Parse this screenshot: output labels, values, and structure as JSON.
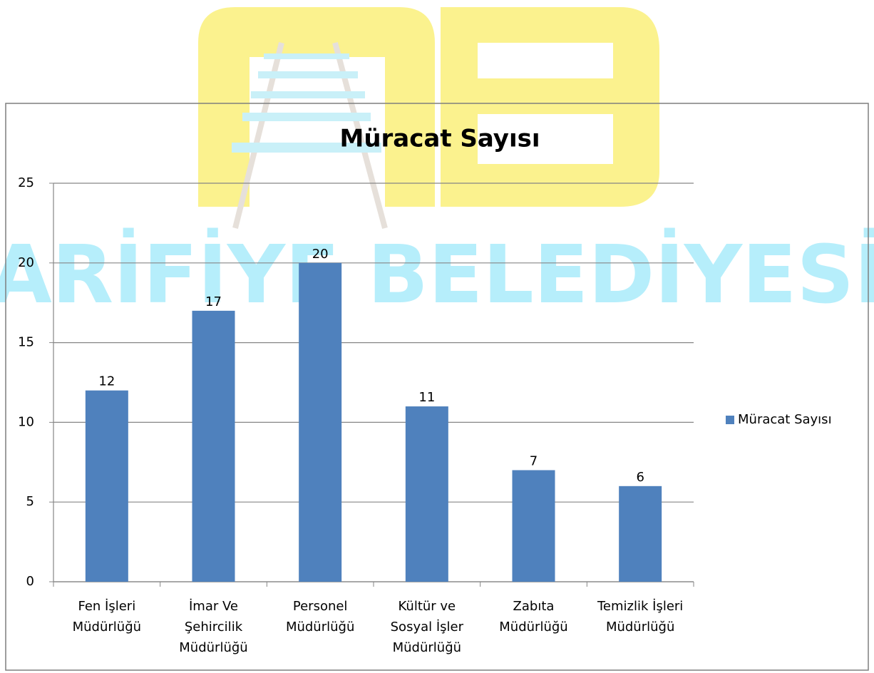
{
  "watermark": "ARİFİYE BELEDİYESİ",
  "chart_data": {
    "type": "bar",
    "title": "Müracat Sayısı",
    "categories": [
      "Fen İşleri Müdürlüğü",
      "İmar Ve Şehircilik Müdürlüğü",
      "Personel Müdürlüğü",
      "Kültür ve Sosyal İşler Müdürlüğü",
      "Zabıta Müdürlüğü",
      "Temizlik İşleri Müdürlüğü"
    ],
    "series": [
      {
        "name": "Müracat Sayısı",
        "color": "#4f81bd",
        "values": [
          12,
          17,
          20,
          11,
          7,
          6
        ]
      }
    ],
    "ylim": [
      0,
      25
    ],
    "yticks": [
      0,
      5,
      10,
      15,
      20,
      25
    ],
    "grid": true,
    "legend": "right"
  }
}
